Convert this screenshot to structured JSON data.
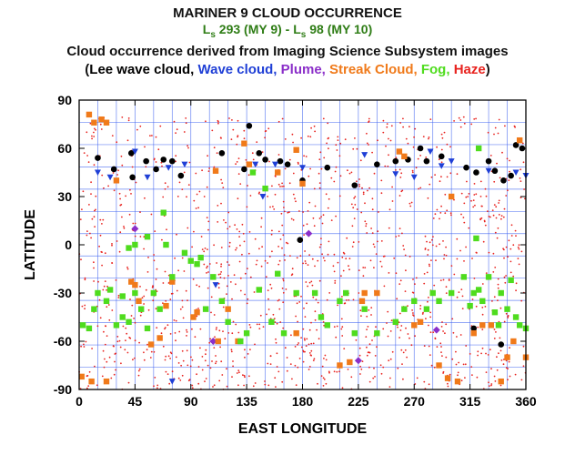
{
  "title": "MARINER 9 CLOUD OCCURRENCE",
  "subtitle": {
    "l1": "L",
    "s1": "s",
    "range1": " 293 (MY 9) - ",
    "l2": "L",
    "s2": "s",
    "range2": " 98 (MY 10)"
  },
  "description": "Cloud occurrence derived from Imaging Science Subsystem images",
  "legend": {
    "open": "(",
    "close": ")",
    "items": [
      {
        "label": "Lee wave cloud,",
        "color": "#000000"
      },
      {
        "label": "Wave cloud,",
        "color": "#1f3fd6"
      },
      {
        "label": "Plume,",
        "color": "#8b2fc9"
      },
      {
        "label": "Streak Cloud,",
        "color": "#f07a1a"
      },
      {
        "label": "Fog,",
        "color": "#4fdc1e"
      },
      {
        "label": "Haze",
        "color": "#e8231f"
      }
    ]
  },
  "chart_data": {
    "type": "scatter",
    "title": "MARINER 9 CLOUD OCCURRENCE",
    "xlabel": "EAST LONGITUDE",
    "ylabel": "LATITUDE",
    "xlim": [
      0,
      360
    ],
    "ylim": [
      -90,
      90
    ],
    "xticks": [
      0,
      45,
      90,
      135,
      180,
      225,
      270,
      315,
      360
    ],
    "yticks": [
      -90,
      -60,
      -30,
      0,
      30,
      60,
      90
    ],
    "grid": true,
    "haze_count": 1400,
    "series": [
      {
        "name": "Lee wave cloud",
        "marker": "circle",
        "color": "#000000",
        "points": [
          [
            15,
            54
          ],
          [
            28,
            47
          ],
          [
            42,
            57
          ],
          [
            43,
            42
          ],
          [
            54,
            52
          ],
          [
            62,
            47
          ],
          [
            68,
            53
          ],
          [
            75,
            52
          ],
          [
            82,
            43
          ],
          [
            115,
            57
          ],
          [
            133,
            47
          ],
          [
            137,
            74
          ],
          [
            145,
            57
          ],
          [
            150,
            53
          ],
          [
            162,
            52
          ],
          [
            168,
            50
          ],
          [
            180,
            40
          ],
          [
            178,
            3
          ],
          [
            200,
            48
          ],
          [
            222,
            37
          ],
          [
            240,
            50
          ],
          [
            255,
            52
          ],
          [
            265,
            53
          ],
          [
            275,
            60
          ],
          [
            280,
            52
          ],
          [
            292,
            55
          ],
          [
            312,
            48
          ],
          [
            320,
            45
          ],
          [
            330,
            52
          ],
          [
            335,
            46
          ],
          [
            342,
            40
          ],
          [
            348,
            43
          ],
          [
            352,
            62
          ],
          [
            357,
            60
          ],
          [
            318,
            -52
          ],
          [
            340,
            -62
          ]
        ]
      },
      {
        "name": "Wave cloud",
        "marker": "triangle",
        "color": "#1f3fd6",
        "points": [
          [
            15,
            45
          ],
          [
            25,
            42
          ],
          [
            45,
            58
          ],
          [
            55,
            42
          ],
          [
            72,
            48
          ],
          [
            85,
            50
          ],
          [
            110,
            -25
          ],
          [
            142,
            50
          ],
          [
            148,
            30
          ],
          [
            158,
            50
          ],
          [
            180,
            48
          ],
          [
            230,
            56
          ],
          [
            255,
            44
          ],
          [
            270,
            42
          ],
          [
            283,
            58
          ],
          [
            292,
            49
          ],
          [
            300,
            52
          ],
          [
            330,
            46
          ],
          [
            352,
            45
          ],
          [
            360,
            43
          ],
          [
            75,
            -85
          ]
        ]
      },
      {
        "name": "Plume",
        "marker": "diamond",
        "color": "#8b2fc9",
        "points": [
          [
            45,
            10
          ],
          [
            108,
            -60
          ],
          [
            185,
            7
          ],
          [
            225,
            -72
          ],
          [
            288,
            -53
          ]
        ]
      },
      {
        "name": "Streak Cloud",
        "marker": "square",
        "color": "#f07a1a",
        "points": [
          [
            8,
            81
          ],
          [
            12,
            76
          ],
          [
            18,
            78
          ],
          [
            22,
            76
          ],
          [
            30,
            40
          ],
          [
            42,
            -23
          ],
          [
            45,
            -25
          ],
          [
            48,
            -35
          ],
          [
            58,
            -62
          ],
          [
            65,
            -58
          ],
          [
            70,
            -38
          ],
          [
            75,
            -23
          ],
          [
            92,
            -45
          ],
          [
            95,
            -42
          ],
          [
            110,
            46
          ],
          [
            112,
            -60
          ],
          [
            120,
            -40
          ],
          [
            128,
            -60
          ],
          [
            133,
            63
          ],
          [
            137,
            50
          ],
          [
            160,
            45
          ],
          [
            175,
            59
          ],
          [
            180,
            38
          ],
          [
            210,
            -75
          ],
          [
            218,
            -73
          ],
          [
            228,
            -35
          ],
          [
            240,
            -30
          ],
          [
            258,
            58
          ],
          [
            262,
            55
          ],
          [
            270,
            -50
          ],
          [
            275,
            -48
          ],
          [
            290,
            -75
          ],
          [
            297,
            -83
          ],
          [
            305,
            -85
          ],
          [
            318,
            -55
          ],
          [
            325,
            -50
          ],
          [
            332,
            -50
          ],
          [
            340,
            -85
          ],
          [
            345,
            -70
          ],
          [
            350,
            -60
          ],
          [
            355,
            65
          ],
          [
            360,
            -70
          ],
          [
            10,
            -85
          ],
          [
            22,
            -85
          ],
          [
            2,
            -82
          ],
          [
            230,
            -30
          ],
          [
            175,
            -55
          ],
          [
            300,
            30
          ]
        ]
      },
      {
        "name": "Fog",
        "marker": "square",
        "color": "#4fdc1e",
        "points": [
          [
            3,
            -50
          ],
          [
            8,
            -52
          ],
          [
            15,
            -30
          ],
          [
            22,
            -35
          ],
          [
            25,
            -28
          ],
          [
            30,
            -50
          ],
          [
            35,
            -32
          ],
          [
            40,
            -48
          ],
          [
            45,
            -30
          ],
          [
            50,
            -40
          ],
          [
            55,
            -52
          ],
          [
            40,
            -2
          ],
          [
            45,
            0
          ],
          [
            55,
            5
          ],
          [
            60,
            -30
          ],
          [
            65,
            -40
          ],
          [
            68,
            20
          ],
          [
            70,
            0
          ],
          [
            75,
            -20
          ],
          [
            85,
            -5
          ],
          [
            90,
            -10
          ],
          [
            95,
            -12
          ],
          [
            98,
            -8
          ],
          [
            102,
            -40
          ],
          [
            108,
            -20
          ],
          [
            115,
            -35
          ],
          [
            120,
            -48
          ],
          [
            130,
            -60
          ],
          [
            135,
            -55
          ],
          [
            140,
            45
          ],
          [
            145,
            -28
          ],
          [
            150,
            35
          ],
          [
            155,
            -48
          ],
          [
            160,
            -18
          ],
          [
            165,
            -55
          ],
          [
            175,
            -30
          ],
          [
            190,
            -30
          ],
          [
            195,
            -45
          ],
          [
            200,
            -50
          ],
          [
            210,
            -35
          ],
          [
            215,
            -30
          ],
          [
            222,
            -55
          ],
          [
            230,
            -40
          ],
          [
            240,
            -55
          ],
          [
            255,
            -48
          ],
          [
            262,
            -40
          ],
          [
            270,
            -35
          ],
          [
            280,
            -40
          ],
          [
            285,
            -30
          ],
          [
            290,
            -35
          ],
          [
            300,
            -30
          ],
          [
            310,
            -20
          ],
          [
            315,
            -38
          ],
          [
            318,
            -30
          ],
          [
            320,
            4
          ],
          [
            322,
            60
          ],
          [
            325,
            -35
          ],
          [
            330,
            -20
          ],
          [
            335,
            -42
          ],
          [
            340,
            -30
          ],
          [
            345,
            -40
          ],
          [
            348,
            -22
          ],
          [
            352,
            -45
          ],
          [
            355,
            -50
          ],
          [
            360,
            -52
          ],
          [
            322,
            -28
          ],
          [
            338,
            -50
          ],
          [
            35,
            -45
          ],
          [
            12,
            -40
          ]
        ]
      }
    ]
  }
}
